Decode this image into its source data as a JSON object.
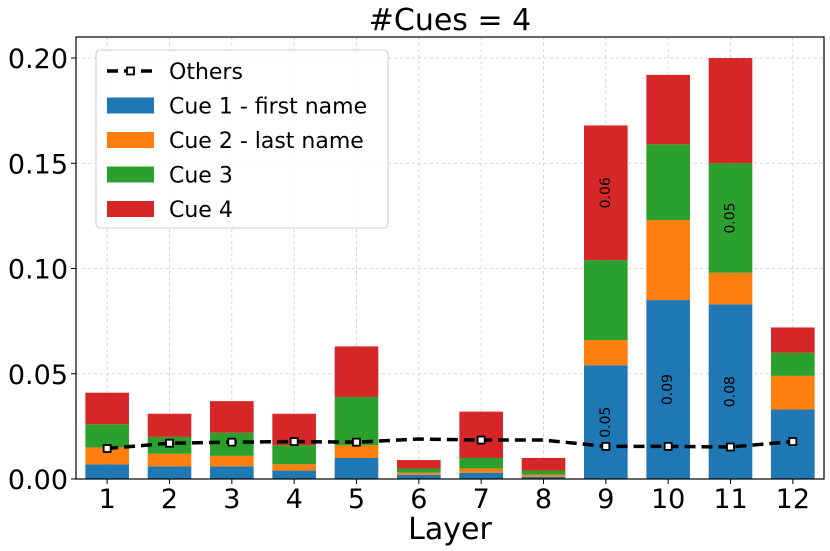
{
  "chart_data": {
    "type": "bar",
    "stacked": true,
    "title": "#Cues = 4",
    "xlabel": "Layer",
    "ylabel": "",
    "categories": [
      "1",
      "2",
      "3",
      "4",
      "5",
      "6",
      "7",
      "8",
      "9",
      "10",
      "11",
      "12"
    ],
    "ylim": [
      0,
      0.21
    ],
    "yticks": [
      "0.00",
      "0.05",
      "0.10",
      "0.15",
      "0.20"
    ],
    "grid": true,
    "legend_position": "top-left",
    "series": [
      {
        "name": "Cue 1 - first name",
        "color": "#1f77b4",
        "values": [
          0.007,
          0.006,
          0.006,
          0.004,
          0.01,
          0.002,
          0.003,
          0.001,
          0.054,
          0.085,
          0.083,
          0.033
        ]
      },
      {
        "name": "Cue 2 - last name",
        "color": "#ff7f0e",
        "values": [
          0.008,
          0.006,
          0.005,
          0.003,
          0.006,
          0.001,
          0.002,
          0.001,
          0.012,
          0.038,
          0.015,
          0.016
        ]
      },
      {
        "name": "Cue 3",
        "color": "#2ca02c",
        "values": [
          0.011,
          0.008,
          0.011,
          0.009,
          0.023,
          0.002,
          0.005,
          0.002,
          0.038,
          0.036,
          0.052,
          0.011
        ]
      },
      {
        "name": "Cue 4",
        "color": "#d62728",
        "values": [
          0.015,
          0.011,
          0.015,
          0.015,
          0.024,
          0.004,
          0.022,
          0.006,
          0.064,
          0.033,
          0.05,
          0.012
        ]
      }
    ],
    "line": {
      "name": "Others",
      "color": "#000000",
      "values": [
        0.0145,
        0.017,
        0.0175,
        0.0178,
        0.0175,
        0.019,
        0.0185,
        0.0185,
        0.0155,
        0.0155,
        0.0152,
        0.0178
      ],
      "markers": [
        0,
        1,
        2,
        3,
        4,
        6,
        8,
        9,
        10,
        11
      ]
    },
    "annotations": [
      {
        "category": "9",
        "series": 0,
        "text": "0.05"
      },
      {
        "category": "9",
        "series": 3,
        "text": "0.06"
      },
      {
        "category": "10",
        "series": 0,
        "text": "0.09"
      },
      {
        "category": "11",
        "series": 0,
        "text": "0.08"
      },
      {
        "category": "11",
        "series": 2,
        "text": "0.05"
      }
    ]
  }
}
